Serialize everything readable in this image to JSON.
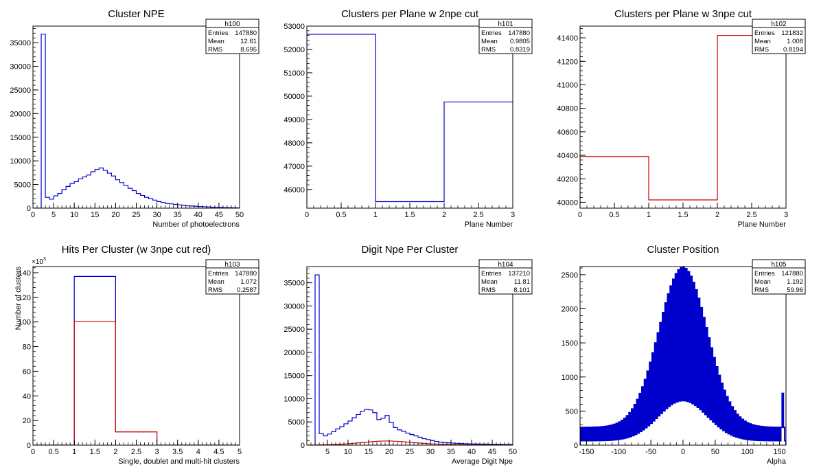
{
  "charts": [
    {
      "id": "h100",
      "type": "histogram",
      "title": "Cluster NPE",
      "xlabel": "Number of photoelectrons",
      "ylabel": "",
      "xlim": [
        0,
        50
      ],
      "ylim": [
        0,
        38500
      ],
      "xticks": [
        0,
        5,
        10,
        15,
        20,
        25,
        30,
        35,
        40,
        45,
        50
      ],
      "yticks": [
        0,
        5000,
        10000,
        15000,
        20000,
        25000,
        30000,
        35000
      ],
      "stats": {
        "name": "h100",
        "Entries": "147880",
        "Mean": "12.61",
        "RMS": "8.695"
      },
      "series": [
        {
          "color": "#0000cc",
          "bin_width": 1,
          "x_start": 0,
          "values": [
            0,
            0,
            36800,
            2300,
            1900,
            2600,
            3100,
            3900,
            4600,
            5200,
            5600,
            6200,
            6600,
            7000,
            7700,
            8200,
            8500,
            8000,
            7400,
            6800,
            6000,
            5400,
            4800,
            4200,
            3700,
            3100,
            2700,
            2300,
            2000,
            1700,
            1400,
            1200,
            1000,
            900,
            800,
            700,
            600,
            500,
            450,
            400,
            350,
            300,
            250,
            200,
            170,
            150,
            120,
            100,
            80,
            60
          ]
        }
      ]
    },
    {
      "id": "h101",
      "type": "histogram",
      "title": "Clusters per Plane w 2npe cut",
      "xlabel": "Plane Number",
      "ylabel": "",
      "xlim": [
        0,
        3
      ],
      "ylim": [
        45200,
        53000
      ],
      "xticks": [
        0,
        0.5,
        1,
        1.5,
        2,
        2.5,
        3
      ],
      "yticks": [
        46000,
        47000,
        48000,
        49000,
        50000,
        51000,
        52000,
        53000
      ],
      "stats": {
        "name": "h101",
        "Entries": "147880",
        "Mean": "0.9805",
        "RMS": "0.8319"
      },
      "series": [
        {
          "color": "#0000cc",
          "bin_width": 1,
          "x_start": 0,
          "values": [
            52650,
            45480,
            49750
          ]
        }
      ]
    },
    {
      "id": "h102",
      "type": "histogram",
      "title": "Clusters per Plane w 3npe cut",
      "xlabel": "Plane Number",
      "ylabel": "",
      "xlim": [
        0,
        3
      ],
      "ylim": [
        39950,
        41500
      ],
      "xticks": [
        0,
        0.5,
        1,
        1.5,
        2,
        2.5,
        3
      ],
      "yticks": [
        40000,
        40200,
        40400,
        40600,
        40800,
        41000,
        41200,
        41400
      ],
      "stats": {
        "name": "h102",
        "Entries": "121832",
        "Mean": "1.008",
        "RMS": "0.8194"
      },
      "series": [
        {
          "color": "#cc0000",
          "bin_width": 1,
          "x_start": 0,
          "values": [
            40390,
            40020,
            41420
          ]
        }
      ]
    },
    {
      "id": "h103",
      "type": "histogram",
      "title": "Hits Per Cluster (w 3npe cut red)",
      "xlabel": "Single, doublet and multi-hit clusters",
      "ylabel": "Number of clusters",
      "exponent": "10",
      "exponent_power": "3",
      "xlim": [
        0,
        5
      ],
      "ylim": [
        0,
        145
      ],
      "xticks": [
        0,
        0.5,
        1,
        1.5,
        2,
        2.5,
        3,
        3.5,
        4,
        4.5,
        5
      ],
      "yticks": [
        0,
        20,
        40,
        60,
        80,
        100,
        120,
        140
      ],
      "ytick_labels": [
        "0",
        "20",
        "40",
        "60",
        "80",
        "100",
        "120",
        "140"
      ],
      "stats": {
        "name": "h103",
        "Entries": "147880",
        "Mean": "1.072",
        "RMS": "0.2587"
      },
      "series": [
        {
          "color": "#0000cc",
          "bin_width": 1,
          "x_start": 0,
          "values": [
            0,
            137,
            10.8,
            0,
            0
          ]
        },
        {
          "color": "#cc0000",
          "bin_width": 1,
          "x_start": 0,
          "values": [
            0,
            100.5,
            10.8,
            0,
            0
          ]
        }
      ]
    },
    {
      "id": "h104",
      "type": "histogram",
      "title": "Digit Npe Per Cluster",
      "xlabel": "Average Digit Npe",
      "ylabel": "",
      "xlim": [
        0,
        50
      ],
      "ylim": [
        0,
        38500
      ],
      "xticks": [
        5,
        10,
        15,
        20,
        25,
        30,
        35,
        40,
        45,
        50
      ],
      "yticks": [
        0,
        5000,
        10000,
        15000,
        20000,
        25000,
        30000,
        35000
      ],
      "stats": {
        "name": "h104",
        "Entries": "137210",
        "Mean": "11.81",
        "RMS": "8.101"
      },
      "series": [
        {
          "color": "#0000cc",
          "bin_width": 1,
          "x_start": 0,
          "values": [
            0,
            0,
            36700,
            2500,
            2000,
            2400,
            2900,
            3500,
            4000,
            4600,
            5200,
            5900,
            6600,
            7300,
            7700,
            7600,
            7000,
            5500,
            5800,
            6400,
            4900,
            3800,
            3300,
            3000,
            2600,
            2300,
            2000,
            1700,
            1400,
            1200,
            1000,
            800,
            650,
            550,
            500,
            450,
            400,
            350,
            300,
            280,
            260,
            240,
            230,
            220,
            200,
            190,
            180,
            170,
            160,
            150
          ]
        },
        {
          "color": "#cc0000",
          "bin_width": 1,
          "x_start": 0,
          "values": [
            0,
            0,
            60,
            80,
            100,
            120,
            150,
            180,
            220,
            270,
            330,
            400,
            480,
            560,
            640,
            720,
            800,
            850,
            880,
            900,
            880,
            840,
            780,
            720,
            650,
            580,
            510,
            440,
            380,
            320,
            270,
            230,
            200,
            170,
            150,
            130,
            110,
            95,
            85,
            75,
            65,
            58,
            52,
            46,
            40,
            35,
            30,
            26,
            22,
            18
          ]
        }
      ]
    },
    {
      "id": "h105",
      "type": "histogram",
      "title": "Cluster Position",
      "xlabel": "Alpha",
      "ylabel": "",
      "xlim": [
        -160,
        160
      ],
      "ylim": [
        0,
        2620
      ],
      "xticks": [
        -150,
        -100,
        -50,
        0,
        50,
        100,
        150
      ],
      "yticks": [
        0,
        500,
        1000,
        1500,
        2000,
        2500
      ],
      "stats": {
        "name": "h105",
        "Entries": "147880",
        "Mean": "1.192",
        "RMS": "59.96"
      },
      "series": [
        {
          "color": "#0000cc",
          "bin_width": 2,
          "x_start": -160,
          "comb": true,
          "peak": 2350,
          "sigma": 38,
          "base": 260
        }
      ]
    }
  ]
}
